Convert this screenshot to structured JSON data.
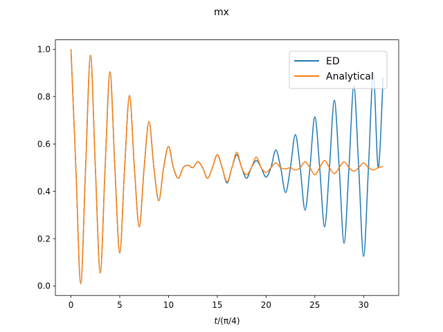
{
  "chart_data": {
    "type": "line",
    "title": "mx",
    "xlabel_italic": "t",
    "xlabel_rest": "/(π/4)",
    "ylabel": "",
    "xlim": [
      -1.6,
      33.6
    ],
    "ylim": [
      -0.04,
      1.04
    ],
    "xticks": [
      0,
      5,
      10,
      15,
      20,
      25,
      30
    ],
    "yticks": [
      0.0,
      0.2,
      0.4,
      0.6,
      0.8,
      1.0
    ],
    "xtick_labels": [
      "0",
      "5",
      "10",
      "15",
      "20",
      "25",
      "30"
    ],
    "ytick_labels": [
      "0.0",
      "0.2",
      "0.4",
      "0.6",
      "0.8",
      "1.0"
    ],
    "grid": false,
    "legend_position": "upper right",
    "series": [
      {
        "name": "ED",
        "color": "#1f77b4",
        "x": [
          0,
          0.5,
          1,
          1.5,
          2,
          2.5,
          3,
          3.5,
          4,
          4.5,
          5,
          5.5,
          6,
          6.5,
          7,
          7.5,
          8,
          8.5,
          9,
          9.5,
          10,
          10.5,
          11,
          11.5,
          12,
          12.5,
          13,
          13.5,
          14,
          14.5,
          15,
          15.5,
          16,
          16.5,
          17,
          17.5,
          18,
          18.5,
          19,
          19.5,
          20,
          20.5,
          21,
          21.5,
          22,
          22.5,
          23,
          23.5,
          24,
          24.5,
          25,
          25.5,
          26,
          26.5,
          27,
          27.5,
          28,
          28.5,
          29,
          29.5,
          30,
          30.5,
          31,
          31.5,
          32
        ],
        "y": [
          1.0,
          0.5,
          0.01,
          0.5,
          0.975,
          0.5,
          0.055,
          0.5,
          0.905,
          0.5,
          0.14,
          0.5,
          0.805,
          0.5,
          0.25,
          0.5,
          0.695,
          0.5,
          0.36,
          0.5,
          0.59,
          0.5,
          0.455,
          0.5,
          0.51,
          0.5,
          0.525,
          0.5,
          0.455,
          0.5,
          0.555,
          0.5,
          0.435,
          0.5,
          0.555,
          0.5,
          0.455,
          0.5,
          0.53,
          0.5,
          0.46,
          0.5,
          0.575,
          0.5,
          0.395,
          0.5,
          0.64,
          0.5,
          0.32,
          0.5,
          0.715,
          0.5,
          0.25,
          0.5,
          0.785,
          0.5,
          0.18,
          0.5,
          0.845,
          0.5,
          0.125,
          0.5,
          0.9,
          0.5,
          0.88
        ]
      },
      {
        "name": "Analytical",
        "color": "#ff7f0e",
        "x": [
          0,
          0.5,
          1,
          1.5,
          2,
          2.5,
          3,
          3.5,
          4,
          4.5,
          5,
          5.5,
          6,
          6.5,
          7,
          7.5,
          8,
          8.5,
          9,
          9.5,
          10,
          10.5,
          11,
          11.5,
          12,
          12.5,
          13,
          13.5,
          14,
          14.5,
          15,
          15.5,
          16,
          16.5,
          17,
          17.5,
          18,
          18.5,
          19,
          19.5,
          20,
          20.5,
          21,
          21.5,
          22,
          22.5,
          23,
          23.5,
          24,
          24.5,
          25,
          25.5,
          26,
          26.5,
          27,
          27.5,
          28,
          28.5,
          29,
          29.5,
          30,
          30.5,
          31,
          31.5,
          32
        ],
        "y": [
          1.0,
          0.5,
          0.01,
          0.5,
          0.975,
          0.5,
          0.055,
          0.5,
          0.905,
          0.5,
          0.14,
          0.5,
          0.805,
          0.5,
          0.25,
          0.5,
          0.695,
          0.5,
          0.36,
          0.5,
          0.59,
          0.5,
          0.455,
          0.5,
          0.51,
          0.5,
          0.525,
          0.5,
          0.455,
          0.5,
          0.555,
          0.5,
          0.44,
          0.5,
          0.565,
          0.5,
          0.47,
          0.5,
          0.545,
          0.5,
          0.48,
          0.5,
          0.52,
          0.5,
          0.495,
          0.5,
          0.49,
          0.5,
          0.525,
          0.5,
          0.47,
          0.5,
          0.53,
          0.5,
          0.475,
          0.5,
          0.525,
          0.5,
          0.485,
          0.5,
          0.52,
          0.5,
          0.49,
          0.5,
          0.505
        ]
      }
    ]
  }
}
